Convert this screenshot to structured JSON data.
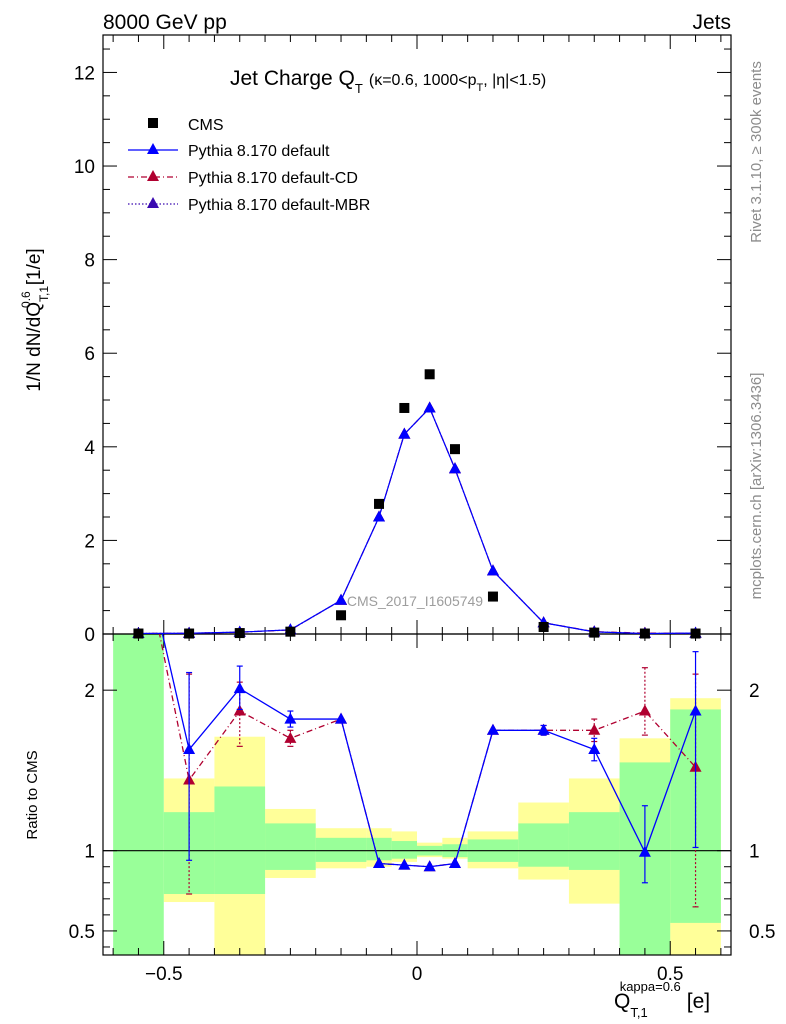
{
  "header": {
    "left": "8000 GeV pp",
    "right": "Jets"
  },
  "side_text": {
    "rivet": "Rivet 3.1.10, ≥ 300k events",
    "mcplots": "mcplots.cern.ch [arXiv:1306.3436]"
  },
  "watermark": "CMS_2017_I1605749",
  "title": {
    "main": "Jet Charge Q",
    "main_sub": "T",
    "detail_1": "(κ=0.6, 1000<p",
    "detail_sub": "T",
    "detail_2": ", |η|<1.5)"
  },
  "legend": [
    {
      "label": "CMS",
      "color": "#000000",
      "marker": "square",
      "line": "none"
    },
    {
      "label": "Pythia 8.170 default",
      "color": "#0000ff",
      "marker": "triangle",
      "line": "solid"
    },
    {
      "label": "Pythia 8.170 default-CD",
      "color": "#b00030",
      "marker": "triangle",
      "line": "dashdot"
    },
    {
      "label": "Pythia 8.170 default-MBR",
      "color": "#3a0ab0",
      "marker": "triangle",
      "line": "dotted"
    }
  ],
  "axes": {
    "ylabel_main": "1/N dN/dQ",
    "ylabel_main_sup": "0.6",
    "ylabel_main_sub": "T,1",
    "ylabel_main_unit": "[1/e]",
    "ylabel_ratio": "Ratio to CMS",
    "xlabel": "Q",
    "xlabel_sup": "kappa=0.6",
    "xlabel_sub": "T,1",
    "xlabel_unit": "[e]"
  },
  "chart_data": {
    "type": "scatter",
    "x_bins": [
      -0.6,
      -0.5,
      -0.4,
      -0.3,
      -0.2,
      -0.1,
      -0.05,
      0.0,
      0.05,
      0.1,
      0.2,
      0.3,
      0.4,
      0.5,
      0.6
    ],
    "x_centers": [
      -0.55,
      -0.45,
      -0.35,
      -0.25,
      -0.15,
      -0.075,
      -0.025,
      0.025,
      0.075,
      0.15,
      0.25,
      0.35,
      0.45,
      0.55
    ],
    "xlim": [
      -0.62,
      0.62
    ],
    "xticks": [
      -0.5,
      0,
      0.5
    ],
    "xtick_labels": [
      "−0.5",
      "0",
      "0.5"
    ],
    "main_ylim": [
      0,
      12.8
    ],
    "main_yticks": [
      0,
      2,
      4,
      6,
      8,
      10,
      12
    ],
    "ratio_ylim": [
      0.35,
      2.35
    ],
    "ratio_yticks": [
      0.5,
      1,
      2
    ],
    "series": [
      {
        "name": "CMS",
        "values": [
          0.01,
          0.01,
          0.02,
          0.05,
          0.4,
          2.78,
          4.83,
          5.55,
          3.95,
          0.8,
          0.15,
          0.03,
          0.01,
          0.01
        ]
      },
      {
        "name": "Pythia 8.170 default",
        "values": [
          0.012,
          0.016,
          0.04,
          0.09,
          0.72,
          2.5,
          4.27,
          4.83,
          3.53,
          1.35,
          0.24,
          0.045,
          0.01,
          0.019
        ]
      },
      {
        "name": "Pythia 8.170 default-CD",
        "values": [
          0.012,
          0.015,
          0.037,
          0.085,
          0.72,
          2.5,
          4.27,
          4.83,
          3.53,
          1.35,
          0.24,
          0.05,
          0.019,
          0.015
        ]
      },
      {
        "name": "Pythia 8.170 default-MBR",
        "values": [
          0.012,
          0.016,
          0.04,
          0.09,
          0.72,
          2.5,
          4.27,
          4.83,
          3.53,
          1.35,
          0.24,
          0.045,
          0.01,
          0.019
        ]
      }
    ],
    "ratio_series": [
      {
        "name": "Pythia 8.170 default",
        "values": [
          3.0,
          1.63,
          2.01,
          1.82,
          1.82,
          0.92,
          0.91,
          0.9,
          0.92,
          1.75,
          1.75,
          1.63,
          0.99,
          1.87
        ],
        "err_lo": [
          0,
          0.69,
          0.13,
          0.05,
          0,
          0,
          0,
          0,
          0,
          0,
          0.03,
          0.07,
          0.19,
          0.85
        ],
        "err_hi": [
          0,
          0.48,
          0.14,
          0.05,
          0,
          0,
          0,
          0,
          0,
          0,
          0.03,
          0.07,
          0.29,
          0.37
        ]
      },
      {
        "name": "Pythia 8.170 default-CD",
        "values": [
          3.0,
          1.44,
          1.87,
          1.7,
          1.82,
          0.92,
          0.91,
          0.9,
          0.92,
          1.75,
          1.75,
          1.75,
          1.87,
          1.52
        ],
        "err_lo": [
          0,
          0.71,
          0.22,
          0.05,
          0,
          0,
          0,
          0,
          0,
          0,
          0.03,
          0.07,
          0.15,
          0.87
        ],
        "err_hi": [
          0,
          0.66,
          0.18,
          0.05,
          0,
          0,
          0,
          0,
          0,
          0,
          0.03,
          0.07,
          0.27,
          0.58
        ]
      }
    ],
    "uncertainty_bands": {
      "stat_green": [
        [
          0,
          2.35
        ],
        [
          0.73,
          1.24
        ],
        [
          0.73,
          1.4
        ],
        [
          0.88,
          1.17
        ],
        [
          0.93,
          1.08
        ],
        [
          0.94,
          1.08
        ],
        [
          0.95,
          1.06
        ],
        [
          0.97,
          1.03
        ],
        [
          0.96,
          1.04
        ],
        [
          0.93,
          1.07
        ],
        [
          0.9,
          1.17
        ],
        [
          0.88,
          1.24
        ],
        [
          0.35,
          1.55
        ],
        [
          0.55,
          1.88
        ]
      ],
      "total_yellow": [
        [
          0,
          0
        ],
        [
          0.68,
          1.45
        ],
        [
          0.35,
          1.71
        ],
        [
          0.83,
          1.26
        ],
        [
          0.89,
          1.14
        ],
        [
          0.9,
          1.14
        ],
        [
          0.93,
          1.12
        ],
        [
          0.96,
          1.05
        ],
        [
          0.95,
          1.08
        ],
        [
          0.89,
          1.12
        ],
        [
          0.82,
          1.3
        ],
        [
          0.67,
          1.45
        ],
        [
          0.35,
          1.7
        ],
        [
          0.35,
          1.95
        ]
      ]
    }
  }
}
